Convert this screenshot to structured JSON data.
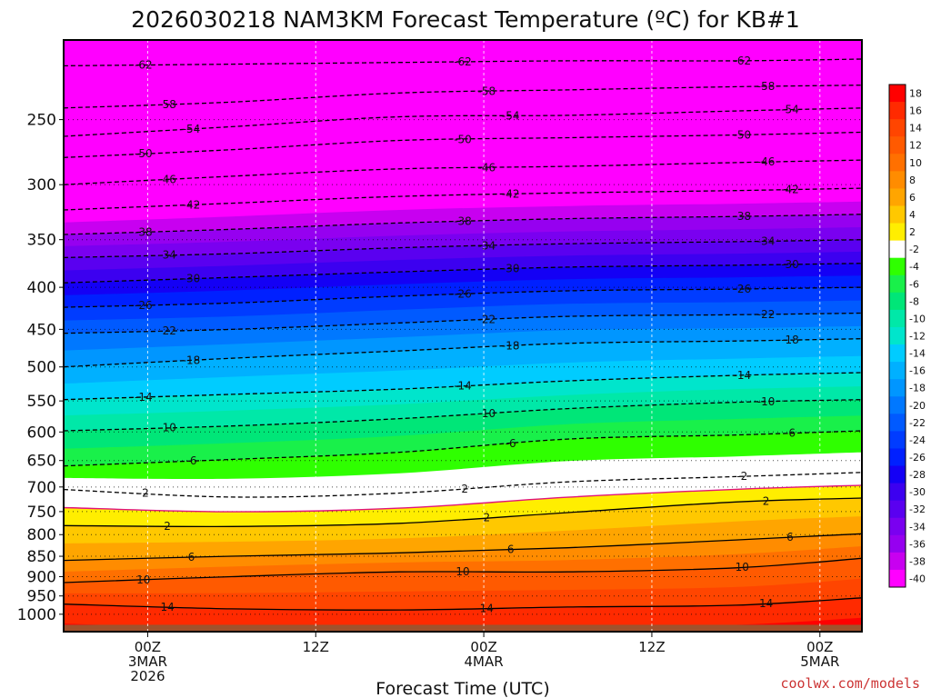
{
  "chart_data": {
    "type": "heatmap",
    "title": "2026030218 NAM3KM Forecast Temperature (ºC) for KB#1",
    "xlabel": "Forecast Time (UTC)",
    "ylabel": "",
    "y_scale": "log-pressure",
    "y_inverted": true,
    "ylim": [
      1050,
      200
    ],
    "y_ticks": [
      250,
      300,
      350,
      400,
      450,
      500,
      550,
      600,
      650,
      700,
      750,
      800,
      850,
      900,
      950,
      1000
    ],
    "y_tick_labels": [
      "250",
      "300",
      "350",
      "400",
      "450",
      "500",
      "550",
      "600",
      "650",
      "700",
      "750",
      "800",
      "850",
      "900",
      "950",
      "1000"
    ],
    "xlim": [
      "2026-03-02T18:00Z",
      "2026-03-05T03:00Z"
    ],
    "x_ticks": [
      {
        "time": "2026-03-03T00:00Z",
        "lines": [
          "00Z",
          "3MAR",
          "2026"
        ]
      },
      {
        "time": "2026-03-03T12:00Z",
        "lines": [
          "12Z"
        ]
      },
      {
        "time": "2026-03-04T00:00Z",
        "lines": [
          "00Z",
          "4MAR"
        ]
      },
      {
        "time": "2026-03-04T12:00Z",
        "lines": [
          "12Z"
        ]
      },
      {
        "time": "2026-03-05T00:00Z",
        "lines": [
          "00Z",
          "5MAR"
        ]
      }
    ],
    "grid": true,
    "legend": "right colorbar",
    "colorbar": {
      "labels": [
        "18",
        "16",
        "14",
        "12",
        "10",
        "8",
        "6",
        "4",
        "2",
        "-2",
        "-4",
        "-6",
        "-8",
        "-10",
        "-12",
        "-14",
        "-16",
        "-18",
        "-20",
        "-22",
        "-24",
        "-26",
        "-28",
        "-30",
        "-32",
        "-34",
        "-36",
        "-38",
        "-40"
      ],
      "colors": [
        "#ff0000",
        "#ff2a00",
        "#ff4500",
        "#ff5a00",
        "#ff7000",
        "#ff8c00",
        "#ffa500",
        "#ffc800",
        "#ffee00",
        "#ffffff",
        "#2fff00",
        "#19f04a",
        "#00e678",
        "#00e8a8",
        "#00e5cc",
        "#00ccff",
        "#00b0ff",
        "#0096ff",
        "#0078ff",
        "#005aff",
        "#003cff",
        "#0020ff",
        "#1400f5",
        "#3c00f0",
        "#5a00f0",
        "#7a00f0",
        "#9600f0",
        "#c800f0",
        "#ff00ff"
      ]
    },
    "contour_levels": [
      -62,
      -58,
      -54,
      -50,
      -46,
      -42,
      -38,
      -34,
      -30,
      -26,
      -22,
      -18,
      -14,
      -10,
      -6,
      -2,
      2,
      6,
      10,
      14
    ],
    "profile_x": [
      "2026-03-02T18:00Z",
      "2026-03-03T06:00Z",
      "2026-03-03T18:00Z",
      "2026-03-04T06:00Z",
      "2026-03-04T18:00Z",
      "2026-03-05T03:00Z"
    ],
    "isotherm_pressure": [
      {
        "level": -62,
        "pressure": [
          215,
          214,
          213,
          212,
          212,
          211
        ]
      },
      {
        "level": -58,
        "pressure": [
          242,
          238,
          232,
          230,
          228,
          227
        ]
      },
      {
        "level": -54,
        "pressure": [
          262,
          255,
          248,
          247,
          244,
          242
        ]
      },
      {
        "level": -50,
        "pressure": [
          278,
          272,
          265,
          263,
          261,
          259
        ]
      },
      {
        "level": -46,
        "pressure": [
          300,
          293,
          287,
          285,
          282,
          280
        ]
      },
      {
        "level": -42,
        "pressure": [
          322,
          316,
          310,
          307,
          305,
          303
        ]
      },
      {
        "level": -38,
        "pressure": [
          345,
          340,
          334,
          330,
          328,
          326
        ]
      },
      {
        "level": -34,
        "pressure": [
          368,
          364,
          358,
          354,
          352,
          350
        ]
      },
      {
        "level": -30,
        "pressure": [
          395,
          389,
          383,
          378,
          376,
          374
        ]
      },
      {
        "level": -26,
        "pressure": [
          423,
          418,
          410,
          404,
          402,
          400
        ]
      },
      {
        "level": -22,
        "pressure": [
          455,
          450,
          442,
          434,
          432,
          430
        ]
      },
      {
        "level": -18,
        "pressure": [
          500,
          488,
          478,
          468,
          465,
          462
        ]
      },
      {
        "level": -14,
        "pressure": [
          548,
          540,
          532,
          520,
          512,
          508
        ]
      },
      {
        "level": -10,
        "pressure": [
          598,
          590,
          578,
          562,
          552,
          548
        ]
      },
      {
        "level": -6,
        "pressure": [
          660,
          648,
          635,
          612,
          605,
          598
        ]
      },
      {
        "level": -2,
        "pressure": [
          705,
          720,
          712,
          690,
          680,
          672
        ]
      },
      {
        "level": 2,
        "pressure": [
          780,
          782,
          775,
          752,
          730,
          722
        ]
      },
      {
        "level": 6,
        "pressure": [
          860,
          850,
          842,
          830,
          812,
          798
        ]
      },
      {
        "level": 10,
        "pressure": [
          915,
          900,
          888,
          888,
          878,
          855
        ]
      },
      {
        "level": 14,
        "pressure": [
          972,
          985,
          988,
          980,
          975,
          955
        ]
      }
    ]
  },
  "credit": "coolwx.com/models"
}
